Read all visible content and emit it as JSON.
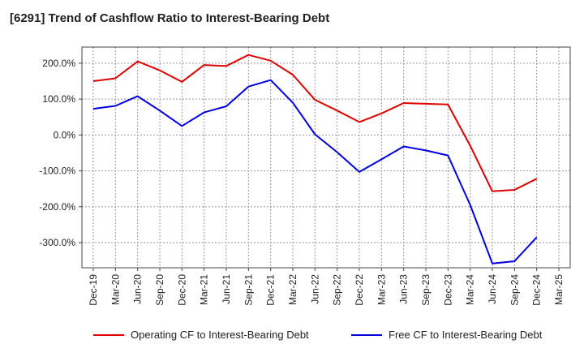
{
  "chart_data": {
    "type": "line",
    "title": "[6291]  Trend of Cashflow Ratio to Interest-Bearing Debt",
    "xlabel": "",
    "ylabel": "",
    "ylim": [
      -370,
      245
    ],
    "yticks": [
      200,
      100,
      0,
      -100,
      -200,
      -300
    ],
    "ytick_labels": [
      "200.0%",
      "100.0%",
      "0.0%",
      "-100.0%",
      "-200.0%",
      "-300.0%"
    ],
    "categories": [
      "Dec-19",
      "Mar-20",
      "Jun-20",
      "Sep-20",
      "Dec-20",
      "Mar-21",
      "Jun-21",
      "Sep-21",
      "Dec-21",
      "Mar-22",
      "Jun-22",
      "Sep-22",
      "Dec-22",
      "Mar-23",
      "Jun-23",
      "Sep-23",
      "Dec-23",
      "Mar-24",
      "Jun-24",
      "Sep-24",
      "Dec-24",
      "Mar-25"
    ],
    "grid": true,
    "legend_position": "bottom",
    "series": [
      {
        "name": "Operating CF to Interest-Bearing Debt",
        "color": "#e00000",
        "values": [
          150,
          158,
          205,
          180,
          148,
          195,
          192,
          223,
          207,
          168,
          98,
          68,
          36,
          60,
          89,
          87,
          85,
          -30,
          -157,
          -153,
          -122,
          null
        ]
      },
      {
        "name": "Free CF to Interest-Bearing Debt",
        "color": "#0000e0",
        "values": [
          73,
          81,
          108,
          68,
          25,
          63,
          80,
          135,
          153,
          90,
          2,
          -48,
          -103,
          -68,
          -32,
          -43,
          -57,
          -195,
          -358,
          -352,
          -285,
          null
        ]
      }
    ]
  }
}
